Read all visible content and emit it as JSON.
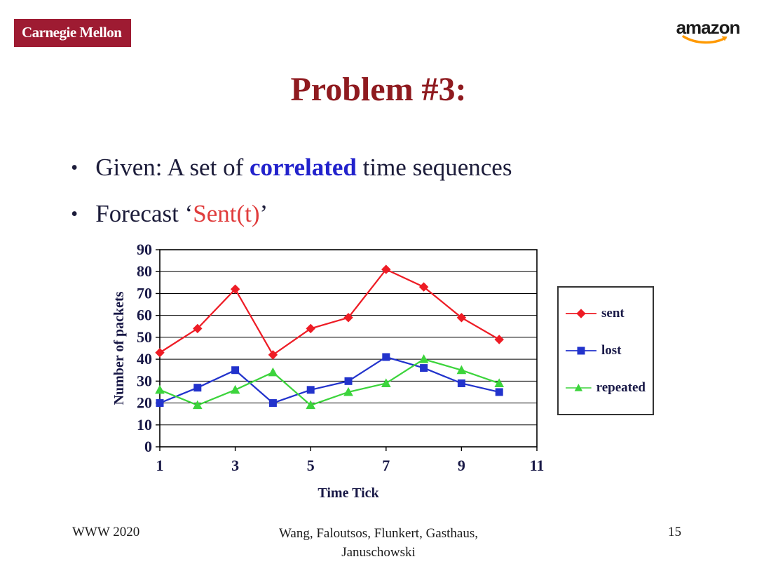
{
  "logos": {
    "carnegie_mellon": "Carnegie Mellon",
    "amazon": "amazon"
  },
  "title": "Problem #3:",
  "bullet_char": "•",
  "bullets": [
    {
      "prefix": "Given: A set of ",
      "highlight": "correlated",
      "suffix": " time sequences"
    },
    {
      "prefix": "Forecast ‘",
      "highlight": "Sent(t)",
      "suffix": "’"
    }
  ],
  "colors": {
    "cmu_red": "#9e1b32",
    "title_red": "#8f1a1f",
    "body_text": "#1c1c3a",
    "highlight_blue": "#2222cc",
    "highlight_red": "#e03c3c",
    "axis_text": "#191947",
    "amazon_orange": "#ff9900"
  },
  "chart_data": {
    "type": "line",
    "x": [
      1,
      2,
      3,
      4,
      5,
      6,
      7,
      8,
      9,
      10
    ],
    "series": [
      {
        "name": "sent",
        "color": "#ee1c25",
        "marker": "diamond",
        "values": [
          43,
          54,
          72,
          42,
          54,
          59,
          81,
          73,
          59,
          49
        ]
      },
      {
        "name": "lost",
        "color": "#2233cc",
        "marker": "square",
        "values": [
          20,
          27,
          35,
          20,
          26,
          30,
          41,
          36,
          29,
          25
        ]
      },
      {
        "name": "repeated",
        "color": "#3cd43c",
        "marker": "triangle",
        "values": [
          26,
          19,
          26,
          34,
          19,
          25,
          29,
          40,
          35,
          29
        ]
      }
    ],
    "xlabel": "Time Tick",
    "ylabel": "Number of packets",
    "xlim": [
      1,
      11
    ],
    "xticks": [
      1,
      3,
      5,
      7,
      9,
      11
    ],
    "ylim": [
      0,
      90
    ],
    "ytick_step": 10,
    "grid": true,
    "legend_position": "right"
  },
  "footer": {
    "left": "WWW 2020",
    "center_line1": "Wang, Faloutsos, Flunkert, Gasthaus,",
    "center_line2": "Januschowski",
    "page_number": "15"
  }
}
